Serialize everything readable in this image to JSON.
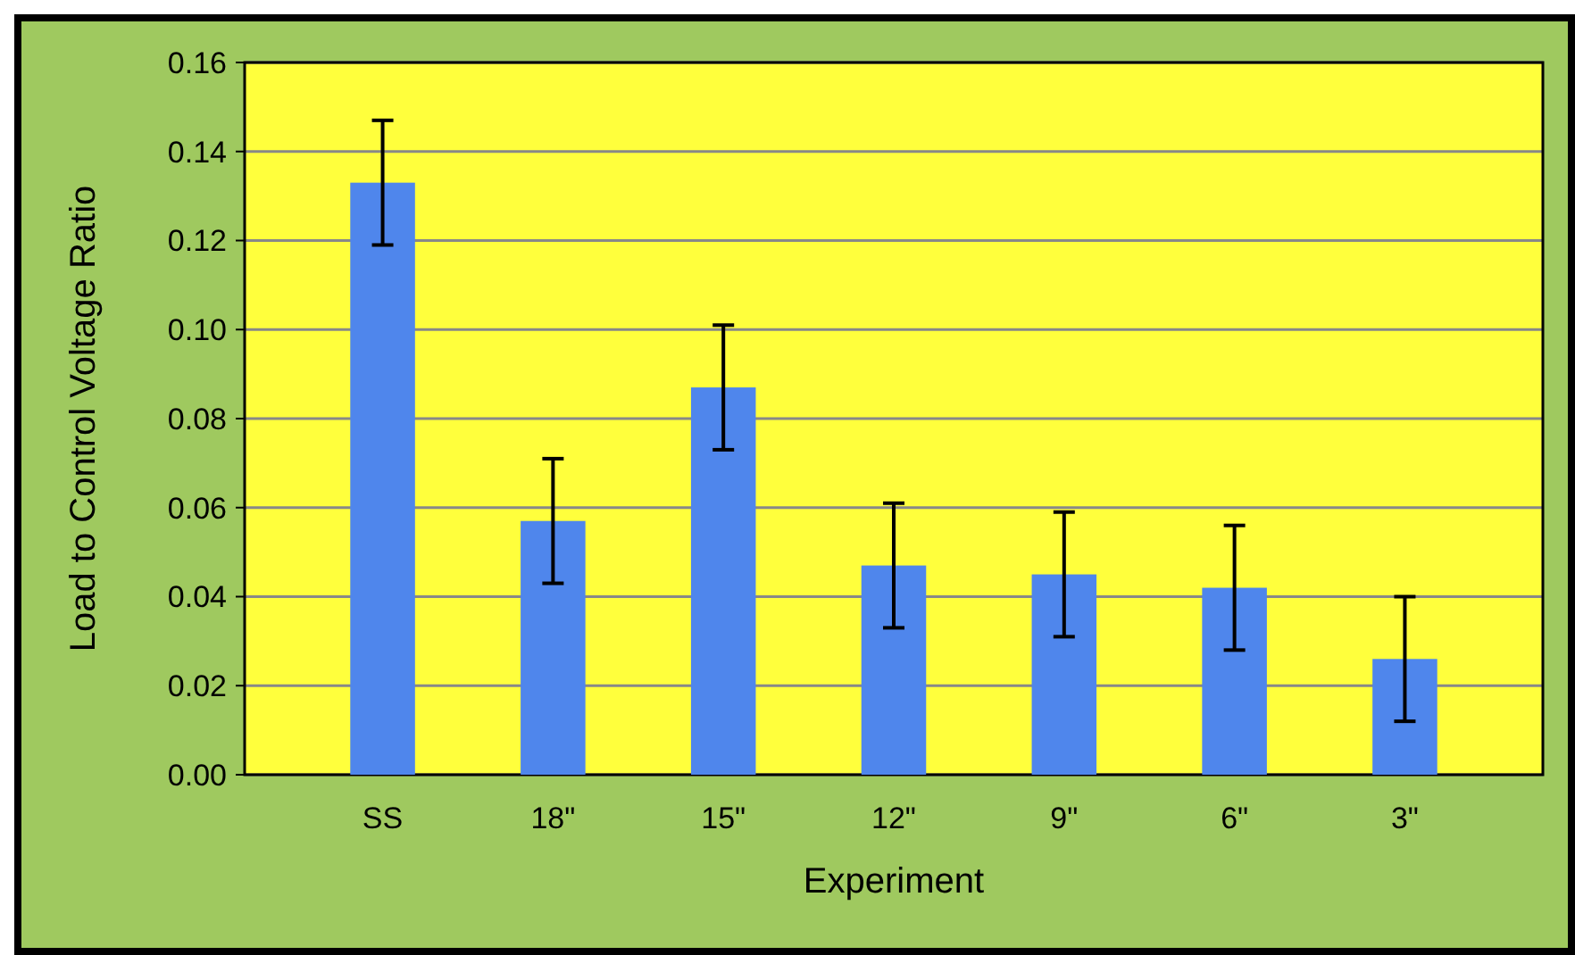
{
  "chart_data": {
    "type": "bar",
    "xlabel": "Experiment",
    "ylabel": "Load to Control Voltage Ratio",
    "categories": [
      "SS",
      "18\"",
      "15\"",
      "12\"",
      "9\"",
      "6\"",
      "3\""
    ],
    "values": [
      0.133,
      0.057,
      0.087,
      0.047,
      0.045,
      0.042,
      0.026
    ],
    "errors": [
      0.014,
      0.014,
      0.014,
      0.014,
      0.014,
      0.014,
      0.014
    ],
    "color": "#4f86ec",
    "ylim": [
      0,
      0.16
    ],
    "yticks": [
      {
        "value": 0,
        "label": "0.00"
      },
      {
        "value": 0.02,
        "label": "0.02"
      },
      {
        "value": 0.04,
        "label": "0.04"
      },
      {
        "value": 0.06,
        "label": "0.06"
      },
      {
        "value": 0.08,
        "label": "0.08"
      },
      {
        "value": 0.1,
        "label": "0.10"
      },
      {
        "value": 0.12,
        "label": "0.12"
      },
      {
        "value": 0.14,
        "label": "0.14"
      },
      {
        "value": 0.16,
        "label": "0.16"
      }
    ],
    "grid": "y"
  }
}
